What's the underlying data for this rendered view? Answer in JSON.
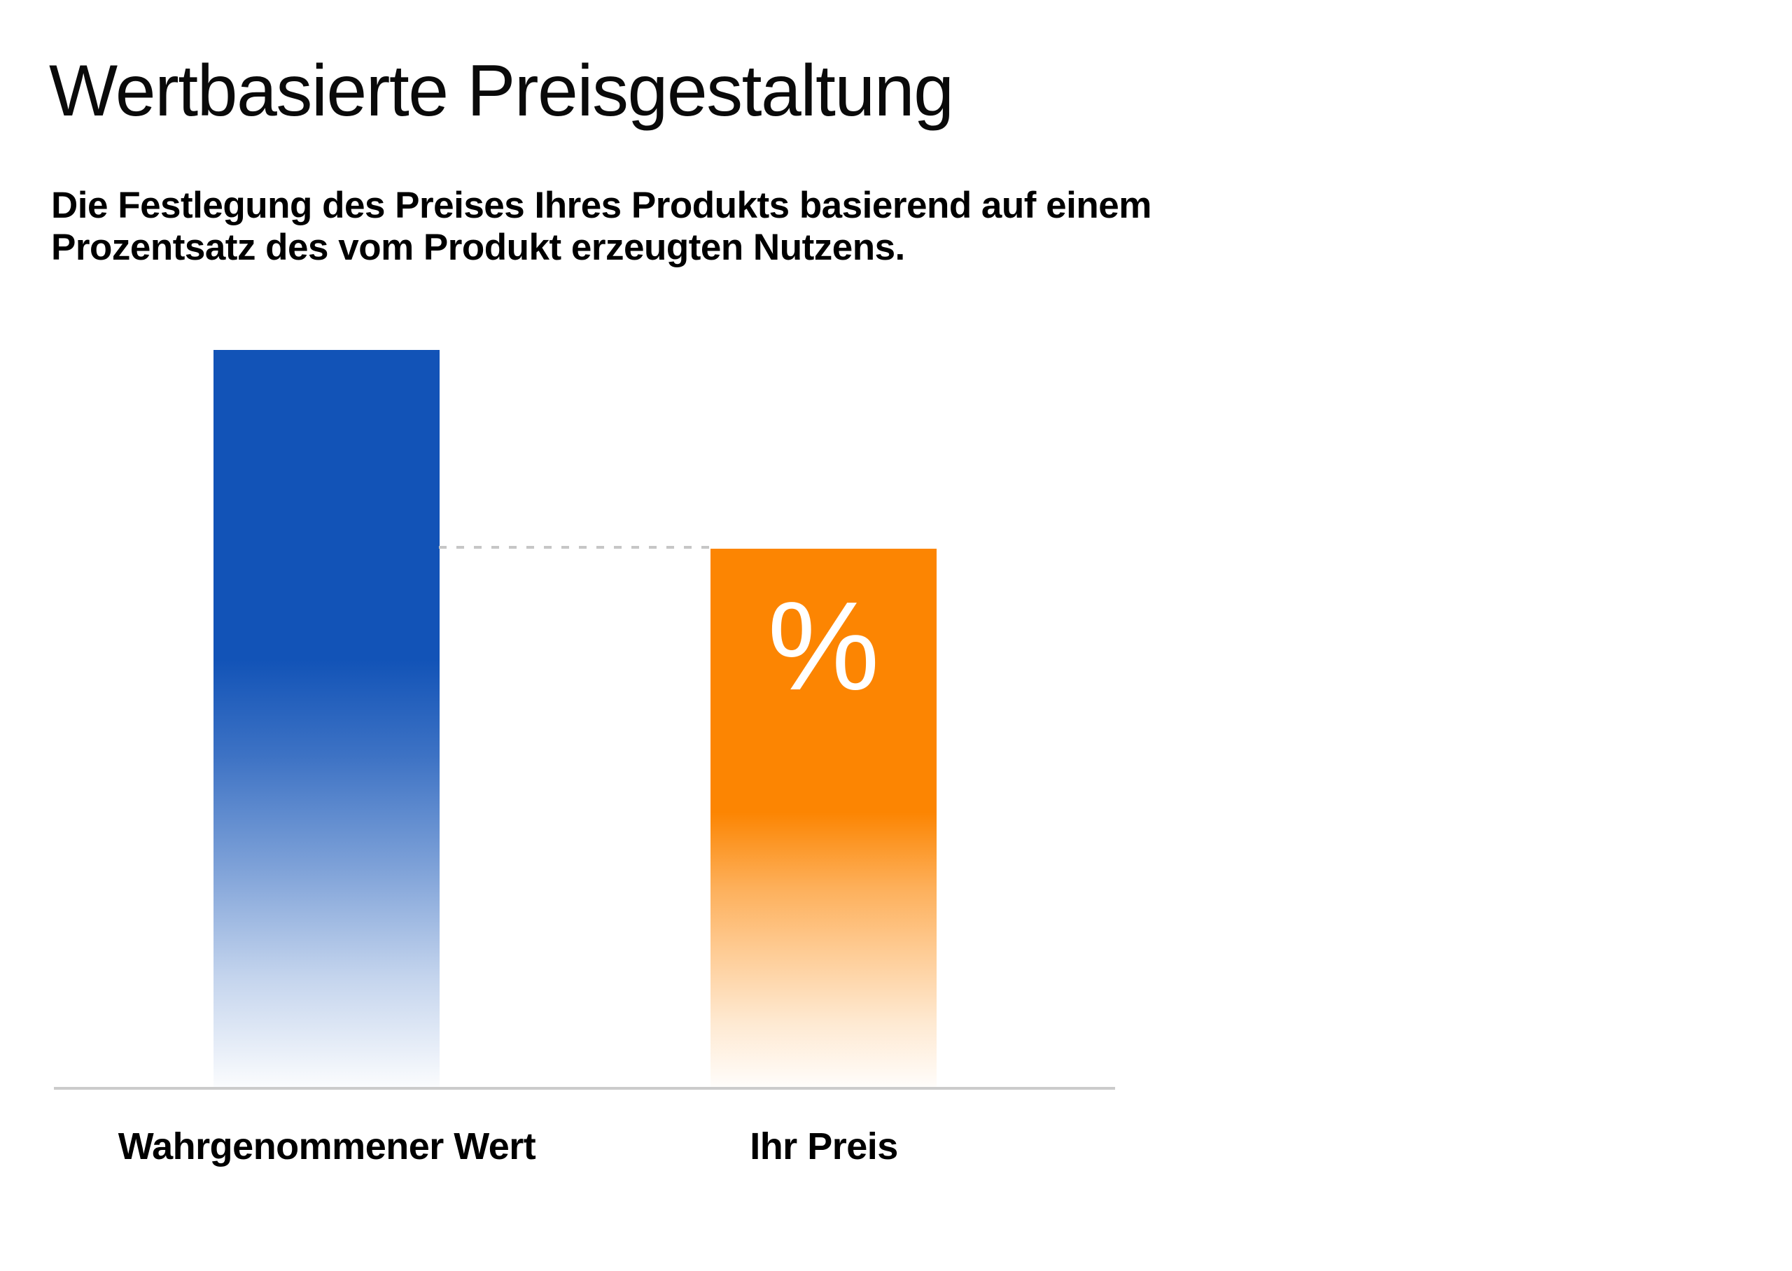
{
  "header": {
    "title": "Wertbasierte Preisgestaltung",
    "subtitle_line1": "Die Festlegung des Preises Ihres Produkts basierend auf einem",
    "subtitle_line2": "Prozentsatz des vom Produkt erzeugten Nutzens."
  },
  "chart_data": {
    "type": "bar",
    "title": "Wertbasierte Preisgestaltung",
    "categories": [
      "Wahrgenommener Wert",
      "Ihr Preis"
    ],
    "values": [
      100,
      73
    ],
    "value_note": "relative scale read from bar heights: perceived value = 100, price ≈ 73",
    "price_bar_symbol": "%",
    "xlabel": "",
    "ylabel": "",
    "legend": false,
    "grid": false,
    "baseline_axis": true,
    "dashed_reference_line": "horizontal dashed line at the top of the 'Ihr Preis' bar, spanning the gap to the 'Wahrgenommener Wert' bar",
    "bar_style": "bars fade vertically from solid color at top to white at the baseline",
    "colors": {
      "perceived_value_bar": "#1253B7",
      "price_bar": "#FC8502",
      "percent_symbol": "#FFFFFF",
      "dashed_line": "#C6C6C6",
      "baseline": "#CBCBCB",
      "text": "#000000",
      "background": "#FFFFFF"
    }
  }
}
